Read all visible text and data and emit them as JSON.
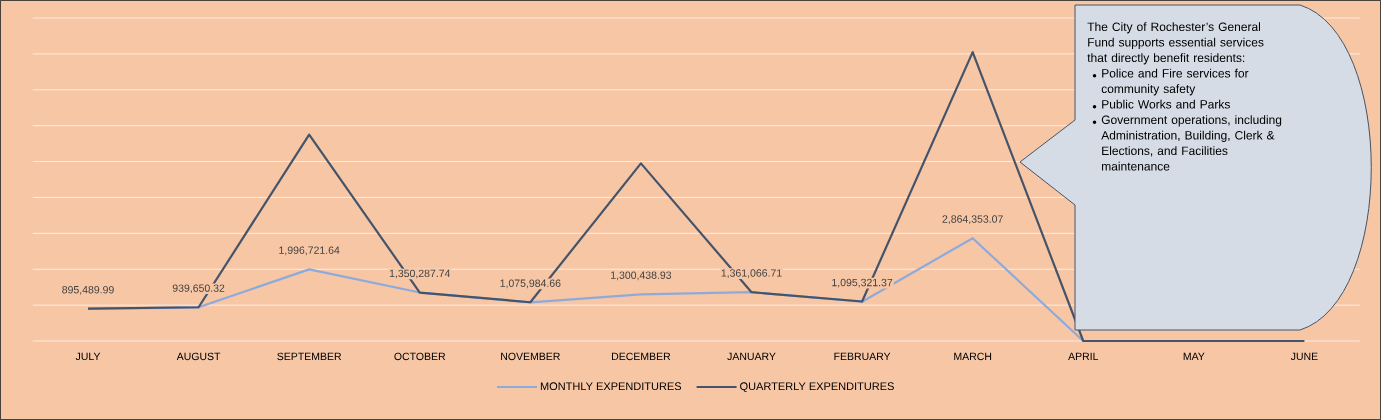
{
  "chart_data": {
    "type": "line",
    "categories": [
      "JULY",
      "AUGUST",
      "SEPTEMBER",
      "OCTOBER",
      "NOVEMBER",
      "DECEMBER",
      "JANUARY",
      "FEBRUARY",
      "MARCH",
      "APRIL",
      "MAY",
      "JUNE"
    ],
    "series": [
      {
        "name": "MONTHLY EXPENDITURES",
        "color": "#8eaadb",
        "values": [
          895489.99,
          939650.32,
          1996721.64,
          1350287.74,
          1075984.66,
          1300438.93,
          1361066.71,
          1095321.37,
          2864353.07,
          0,
          null,
          null
        ],
        "value_labels": [
          "895,489.99",
          "939,650.32",
          "1,996,721.64",
          "1,350,287.74",
          "1,075,984.66",
          "1,300,438.93",
          "1,361,066.71",
          "1,095,321.37",
          "2,864,353.07",
          null,
          null,
          null
        ]
      },
      {
        "name": "QUARTERLY EXPENDITURES",
        "color": "#44546a",
        "values": [
          900000,
          940000,
          5750000,
          1350000,
          1080000,
          4950000,
          1360000,
          1100000,
          8050000,
          0,
          0,
          0
        ]
      }
    ],
    "ylim": [
      0,
      9000000
    ],
    "yticks": [
      {
        "value": 0,
        "label": null
      },
      {
        "value": 1000000,
        "label": null
      },
      {
        "value": 2000000,
        "label": null
      },
      {
        "value": 3000000,
        "label": null
      },
      {
        "value": 4000000,
        "label": null
      },
      {
        "value": 5000000,
        "label": null
      },
      {
        "value": 6000000,
        "label": null
      },
      {
        "value": 7000000,
        "label": null
      },
      {
        "value": 8000000,
        "label": null
      },
      {
        "value": 9000000,
        "label": null
      }
    ],
    "grid": "y",
    "legend": "bottom",
    "marker": "none",
    "line_style": "solid",
    "tick_labels": "x",
    "annotations": [
      "The City of Rochester’s General Fund supports essential services that directly benefit residents:",
      "Police and Fire services for community safety",
      "Public Works and Parks",
      "Government operations, including Administration, Building, Clerk & Elections, and Facilities maintenance"
    ]
  }
}
